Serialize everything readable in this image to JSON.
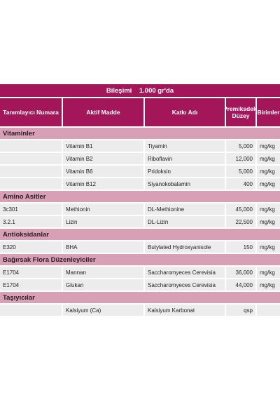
{
  "table": {
    "title": "Bileşimi    1.000 gr'da",
    "headers": [
      "Tanımlayıcı Numara",
      "Aktif Madde",
      "Katkı Adı",
      "Premiksdeki Düzey",
      "Birimler"
    ],
    "sections": [
      {
        "title": "Vitaminler",
        "rows": [
          [
            null,
            "Vitamin B1",
            "Tiyamin",
            "5,000",
            "mg/kg"
          ],
          [
            null,
            "Vitamin B2",
            "Riboflavin",
            "12,000",
            "mg/kg"
          ],
          [
            null,
            "Vitamin B6",
            "Pridoksin",
            "5,000",
            "mg/kg"
          ],
          [
            null,
            "Vitamin B12",
            "Siyanokobalamin",
            "400",
            "mg/kg"
          ]
        ]
      },
      {
        "title": "Amino Asitler",
        "rows": [
          [
            "3c301",
            "Methionin",
            "DL-Methionine",
            "45,000",
            "mg/kg"
          ],
          [
            "3.2.1",
            "Lizin",
            "DL-Lizin",
            "22,500",
            "mg/kg"
          ]
        ]
      },
      {
        "title": "Antioksidanlar",
        "rows": [
          [
            "E320",
            "BHA",
            "Butylated Hydroxyanisole",
            "150",
            "mg/kg"
          ]
        ]
      },
      {
        "title": "Bağırsak Flora Düzenleyiciler",
        "rows": [
          [
            "E1704",
            "Mannan",
            "Saccharomyeces Cerevisia",
            "36,000",
            "mg/kg"
          ],
          [
            "E1704",
            "Glukan",
            "Saccharomyeces Cerevisia",
            "44,000",
            "mg/kg"
          ]
        ]
      },
      {
        "title": "Taşıyıcılar",
        "rows": [
          [
            null,
            "Kalsiyum (Ca)",
            "Kalsiyum Karbonat",
            "qsp",
            null
          ]
        ]
      }
    ]
  }
}
